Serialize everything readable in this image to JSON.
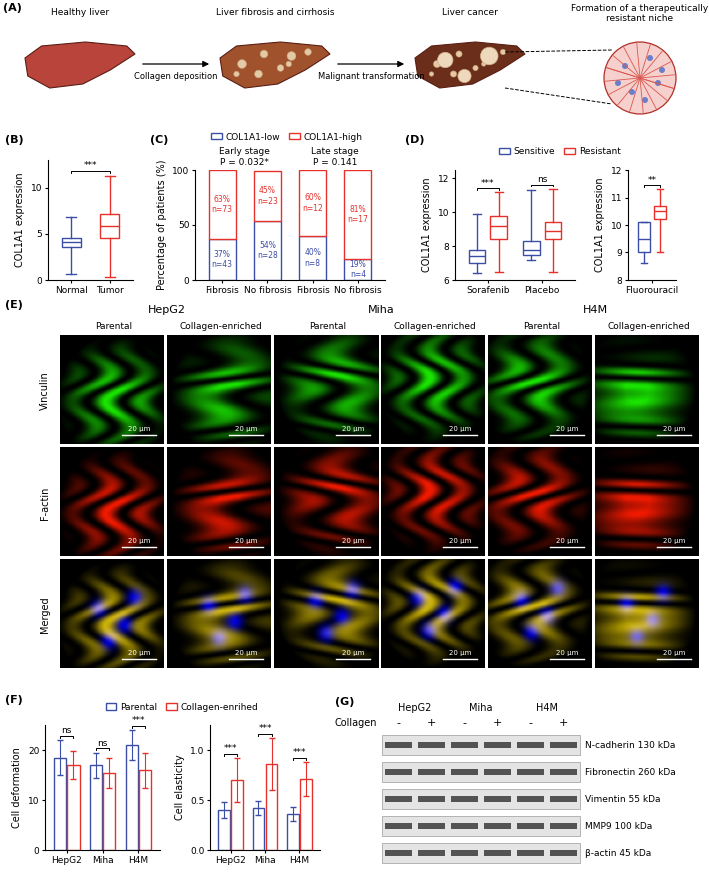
{
  "diagram": {
    "label": "(A)",
    "stages": [
      "Healthy liver",
      "Liver fibrosis and cirrhosis",
      "Liver cancer"
    ],
    "transitions": [
      "Collagen deposition",
      "Malignant transformation"
    ],
    "inset": "Formation of a therapeutically resistant niche"
  },
  "chart_data": [
    {
      "label": "(B)",
      "type": "box",
      "ylabel": "COL1A1 expression",
      "categories": [
        "Normal",
        "Tumor"
      ],
      "colors": [
        "#3b4ea6",
        "#e6312b"
      ],
      "boxes": [
        {
          "whislo": 0.7,
          "q1": 3.6,
          "med": 4.1,
          "q3": 4.6,
          "whishi": 6.8
        },
        {
          "whislo": 0.3,
          "q1": 4.6,
          "med": 5.8,
          "q3": 7.1,
          "whishi": 11.3
        }
      ],
      "significance": [
        "***"
      ],
      "ylim": [
        0,
        13
      ],
      "yticks": [
        0,
        5,
        10
      ]
    },
    {
      "label": "(C)",
      "type": "bar",
      "stacked": true,
      "data_labels": true,
      "ylabel": "Percentage of patients (%)",
      "categories": [
        "Fibrosis",
        "No fibrosis",
        "Fibrosis",
        "No fibrosis"
      ],
      "groups": [
        [
          "Early stage",
          "P = 0.032*"
        ],
        [
          "Late stage",
          "P = 0.141"
        ]
      ],
      "series": [
        {
          "name": "COL1A1-low",
          "color": "#3b4ea6",
          "values": [
            37,
            54,
            40,
            19
          ],
          "value_labels": [
            "37%\nn=43",
            "54%\nn=28",
            "40%\nn=8",
            "19%\nn=4"
          ]
        },
        {
          "name": "COL1A1-high",
          "color": "#e6312b",
          "values": [
            63,
            45,
            60,
            81
          ],
          "value_labels": [
            "63%\nn=73",
            "45%\nn=23",
            "60%\nn=12",
            "81%\nn=17"
          ]
        }
      ],
      "legend": "top",
      "ylim": [
        0,
        100
      ],
      "yticks": [
        0,
        50,
        100
      ]
    },
    {
      "label": "(D)",
      "type": "box",
      "ylabel": "COL1A1 expression",
      "categories": [
        "Sorafenib",
        "Placebo"
      ],
      "series": [
        {
          "name": "Sensitive",
          "color": "#3b4ea6",
          "boxes": [
            {
              "whislo": 6.4,
              "q1": 7.0,
              "med": 7.4,
              "q3": 7.8,
              "whishi": 9.9
            },
            {
              "whislo": 7.2,
              "q1": 7.5,
              "med": 7.8,
              "q3": 8.3,
              "whishi": 11.3
            }
          ]
        },
        {
          "name": "Resistant",
          "color": "#e6312b",
          "boxes": [
            {
              "whislo": 6.5,
              "q1": 8.4,
              "med": 9.2,
              "q3": 9.8,
              "whishi": 11.2
            },
            {
              "whislo": 6.5,
              "q1": 8.4,
              "med": 8.9,
              "q3": 9.4,
              "whishi": 11.4
            }
          ]
        }
      ],
      "significance": [
        "***",
        "ns"
      ],
      "legend": "top",
      "ylim": [
        6,
        12.5
      ],
      "yticks": [
        6,
        8,
        10,
        12
      ]
    },
    {
      "type": "box",
      "ylabel": "COL1A1 expression",
      "categories": [
        "Fluorouracil"
      ],
      "series": [
        {
          "color": "#3b4ea6",
          "boxes": [
            {
              "whislo": 8.6,
              "q1": 9.0,
              "med": 9.5,
              "q3": 10.1,
              "whishi": 10.1
            }
          ]
        },
        {
          "color": "#e6312b",
          "boxes": [
            {
              "whislo": 9.0,
              "q1": 10.2,
              "med": 10.5,
              "q3": 10.7,
              "whishi": 11.3
            }
          ]
        }
      ],
      "significance": [
        "**"
      ],
      "ylim": [
        8,
        12
      ],
      "yticks": [
        8,
        9,
        10,
        11,
        12
      ]
    },
    {
      "label": "(F)",
      "type": "bar",
      "ylabel": "Cell deformation",
      "categories": [
        "HepG2",
        "Miha",
        "H4M"
      ],
      "series": [
        {
          "name": "Parental",
          "color": "#3b4ea6",
          "values": [
            18.5,
            17,
            21
          ],
          "errors": [
            3.5,
            2.5,
            3
          ]
        },
        {
          "name": "Collagen-enrihed",
          "color": "#e6312b",
          "values": [
            17,
            15.5,
            16
          ],
          "errors": [
            2.8,
            3,
            3.5
          ]
        }
      ],
      "significance": [
        "ns",
        "ns",
        "***"
      ],
      "legend": "top",
      "ylim": [
        0,
        25
      ],
      "yticks": [
        0,
        10,
        20
      ]
    },
    {
      "type": "bar",
      "ylabel": "Cell elasticity",
      "categories": [
        "HepG2",
        "Miha",
        "H4M"
      ],
      "series": [
        {
          "color": "#3b4ea6",
          "values": [
            0.4,
            0.42,
            0.36
          ],
          "errors": [
            0.08,
            0.07,
            0.07
          ]
        },
        {
          "color": "#e6312b",
          "values": [
            0.7,
            0.86,
            0.71
          ],
          "errors": [
            0.22,
            0.26,
            0.17
          ]
        }
      ],
      "significance": [
        "***",
        "***",
        "***"
      ],
      "ylim": [
        0,
        1.25
      ],
      "yticks": [
        {
          "value": 0,
          "label": "0.0"
        },
        {
          "value": 0.5,
          "label": "0.5"
        },
        {
          "value": 1,
          "label": "1.0"
        }
      ]
    }
  ],
  "images": {
    "label": "(E)",
    "cell_lines": [
      "HepG2",
      "Miha",
      "H4M"
    ],
    "conditions": [
      "Parental",
      "Collagen-enriched"
    ],
    "stains": [
      "Vinculin",
      "F-actin",
      "Merged"
    ],
    "scale_bar": "20 μm"
  },
  "blot": {
    "label": "(G)",
    "cell_lines": [
      "HepG2",
      "Miha",
      "H4M"
    ],
    "treatment": "Collagen",
    "lanes": [
      "-",
      "+"
    ],
    "proteins": [
      "N-cadherin 130 kDa",
      "Fibronectin 260 kDa",
      "Vimentin 55 kDa",
      "MMP9 100 kDa",
      "β-actin 45 kDa"
    ]
  }
}
